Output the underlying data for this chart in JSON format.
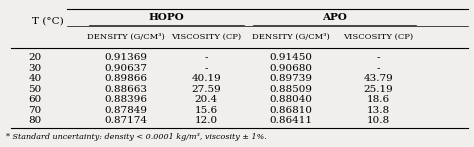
{
  "title": "",
  "col_labels": [
    "T (°C)",
    "Density (g/cm³)",
    "Viscosity (CP)",
    "Density (g/cm³)",
    "Viscosity (CP)"
  ],
  "group_labels": [
    "HOPO",
    "APO"
  ],
  "sub_headers": [
    "Density (g/cm³)",
    "Viscosity (CP)",
    "Density (g/cm³)",
    "Viscosity (CP)"
  ],
  "temperatures": [
    20,
    30,
    40,
    50,
    60,
    70,
    80
  ],
  "hopo_density": [
    "0.91369",
    "0.90637",
    "0.89866",
    "0.88663",
    "0.88396",
    "0.87849",
    "0.87174"
  ],
  "hopo_viscosity": [
    "-",
    "-",
    "40.19",
    "27.59",
    "20.4",
    "15.6",
    "12.0"
  ],
  "apo_density": [
    "0.91450",
    "0.90680",
    "0.89739",
    "0.88509",
    "0.88040",
    "0.86810",
    "0.86411"
  ],
  "apo_viscosity": [
    "-",
    "-",
    "43.79",
    "25.19",
    "18.6",
    "13.8",
    "10.8"
  ],
  "footnote": "* Standard uncertainty: density < 0.0001 kg/m³, viscosity ± 1%.",
  "bg_color": "#f0efed",
  "header_font_size": 7.5,
  "data_font_size": 7.5
}
